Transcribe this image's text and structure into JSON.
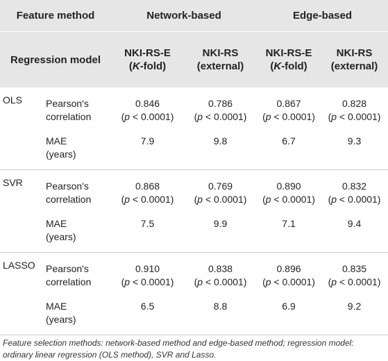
{
  "header": {
    "feature_method": "Feature method",
    "network_based": "Network-based",
    "edge_based": "Edge-based",
    "regression_model": "Regression model",
    "columns": [
      {
        "name": "NKI-RS-E",
        "sub": [
          "(",
          "K",
          "-fold)"
        ]
      },
      {
        "name": "NKI-RS",
        "sub": [
          "(external)"
        ]
      },
      {
        "name": "NKI-RS-E",
        "sub": [
          "(",
          "K",
          "-fold)"
        ]
      },
      {
        "name": "NKI-RS",
        "sub": [
          "(external)"
        ]
      }
    ]
  },
  "rows": [
    {
      "model": "OLS",
      "metrics": [
        {
          "name": [
            "Pearson's",
            "correlation"
          ],
          "cells": [
            {
              "value": "0.846",
              "p": [
                "(",
                "p",
                " < 0.0001)"
              ]
            },
            {
              "value": "0.786",
              "p": [
                "(",
                "p",
                " < 0.0001)"
              ]
            },
            {
              "value": "0.867",
              "p": [
                "(",
                "p",
                " < 0.0001)"
              ]
            },
            {
              "value": "0.828",
              "p": [
                "(",
                "p",
                " < 0.0001)"
              ]
            }
          ]
        },
        {
          "name": [
            "MAE",
            "(years)"
          ],
          "cells": [
            {
              "value": "7.9"
            },
            {
              "value": "9.8"
            },
            {
              "value": "6.7"
            },
            {
              "value": "9.3"
            }
          ]
        }
      ]
    },
    {
      "model": "SVR",
      "metrics": [
        {
          "name": [
            "Pearson's",
            "correlation"
          ],
          "cells": [
            {
              "value": "0.868",
              "p": [
                "(",
                "p",
                " < 0.0001)"
              ]
            },
            {
              "value": "0.769",
              "p": [
                "(",
                "p",
                " < 0.0001)"
              ]
            },
            {
              "value": "0.890",
              "p": [
                "(",
                "p",
                " < 0.0001)"
              ]
            },
            {
              "value": "0.832",
              "p": [
                "(",
                "p",
                " < 0.0001)"
              ]
            }
          ]
        },
        {
          "name": [
            "MAE",
            "(years)"
          ],
          "cells": [
            {
              "value": "7.5"
            },
            {
              "value": "9.9"
            },
            {
              "value": "7.1"
            },
            {
              "value": "9.4"
            }
          ]
        }
      ]
    },
    {
      "model": "LASSO",
      "metrics": [
        {
          "name": [
            "Pearson's",
            "correlation"
          ],
          "cells": [
            {
              "value": "0.910",
              "p": [
                "(",
                "p",
                " < 0.0001)"
              ]
            },
            {
              "value": "0.838",
              "p": [
                "(",
                "p",
                " < 0.0001)"
              ]
            },
            {
              "value": "0.896",
              "p": [
                "(",
                "p",
                " < 0.0001)"
              ]
            },
            {
              "value": "0.835",
              "p": [
                "(",
                "p",
                " < 0.0001)"
              ]
            }
          ]
        },
        {
          "name": [
            "MAE",
            "(years)"
          ],
          "cells": [
            {
              "value": "6.5"
            },
            {
              "value": "8.8"
            },
            {
              "value": "6.9"
            },
            {
              "value": "9.2"
            }
          ]
        }
      ]
    }
  ],
  "footnote": "Feature selection methods: network-based method and edge-based method; regression model: ordinary linear regression (OLS method), SVR and Lasso."
}
